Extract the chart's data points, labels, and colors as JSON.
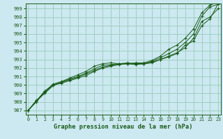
{
  "title": "Graphe pression niveau de la mer (hPa)",
  "background_color": "#cce8f0",
  "grid_color": "#99ccbb",
  "line_color": "#1a5c1a",
  "marker_color": "#1a5c1a",
  "xlim": [
    -0.3,
    23.3
  ],
  "ylim": [
    986.5,
    999.6
  ],
  "yticks": [
    987,
    988,
    989,
    990,
    991,
    992,
    993,
    994,
    995,
    996,
    997,
    998,
    999
  ],
  "xticks": [
    0,
    1,
    2,
    3,
    4,
    5,
    6,
    7,
    8,
    9,
    10,
    11,
    12,
    13,
    14,
    15,
    16,
    17,
    18,
    19,
    20,
    21,
    22,
    23
  ],
  "series": [
    [
      987.0,
      988.2,
      989.1,
      990.0,
      990.3,
      990.7,
      991.0,
      991.4,
      991.9,
      992.3,
      992.4,
      992.5,
      992.5,
      992.5,
      992.5,
      992.7,
      993.0,
      993.4,
      993.8,
      994.4,
      995.5,
      997.5,
      998.0,
      999.0
    ],
    [
      987.0,
      988.1,
      989.0,
      989.9,
      990.3,
      990.6,
      990.9,
      991.3,
      991.7,
      992.1,
      992.3,
      992.5,
      992.6,
      992.5,
      992.5,
      992.8,
      993.2,
      993.7,
      994.2,
      995.0,
      996.0,
      998.1,
      999.2,
      999.5
    ],
    [
      987.0,
      988.0,
      989.2,
      990.1,
      990.4,
      990.8,
      991.2,
      991.6,
      992.2,
      992.5,
      992.6,
      992.5,
      992.5,
      992.6,
      992.6,
      992.9,
      993.4,
      994.2,
      994.7,
      995.5,
      996.6,
      998.5,
      999.4,
      999.8
    ],
    [
      987.0,
      988.1,
      989.3,
      990.0,
      990.2,
      990.5,
      990.8,
      991.1,
      991.6,
      992.0,
      992.2,
      992.4,
      992.5,
      992.4,
      992.5,
      992.6,
      993.0,
      993.3,
      993.7,
      994.7,
      995.2,
      997.0,
      997.8,
      999.6
    ]
  ],
  "x_series": [
    0,
    1,
    2,
    3,
    4,
    5,
    6,
    7,
    8,
    9,
    10,
    11,
    12,
    13,
    14,
    15,
    16,
    17,
    18,
    19,
    20,
    21,
    22,
    23
  ]
}
